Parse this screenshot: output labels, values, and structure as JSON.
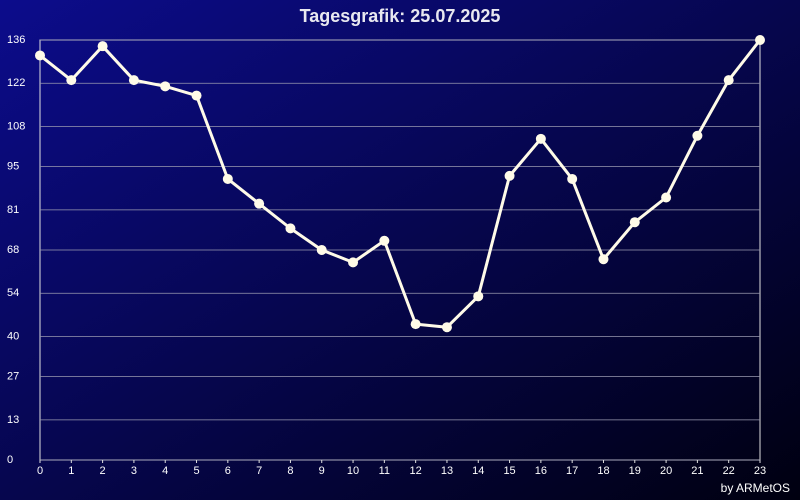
{
  "chart_data": {
    "type": "line",
    "title": "Tagesgrafik: 25.07.2025",
    "footer": "by ARMetOS",
    "x": [
      0,
      1,
      2,
      3,
      4,
      5,
      6,
      7,
      8,
      9,
      10,
      11,
      12,
      13,
      14,
      15,
      16,
      17,
      18,
      19,
      20,
      21,
      22,
      23
    ],
    "series": [
      {
        "color": "#fffbe8",
        "values": [
          131,
          123,
          134,
          123,
          121,
          118,
          91,
          83,
          75,
          68,
          64,
          71,
          44,
          43,
          53,
          92,
          104,
          91,
          65,
          77,
          85,
          105,
          123,
          136
        ]
      }
    ],
    "xlim": [
      0,
      23
    ],
    "xticks": [
      0,
      1,
      2,
      3,
      4,
      5,
      6,
      7,
      8,
      9,
      10,
      11,
      12,
      13,
      14,
      15,
      16,
      17,
      18,
      19,
      20,
      21,
      22,
      23
    ],
    "ylim": [
      0,
      136
    ],
    "yticks": [
      0,
      13,
      27,
      40,
      54,
      68,
      81,
      95,
      108,
      122,
      136
    ],
    "grid": true
  }
}
